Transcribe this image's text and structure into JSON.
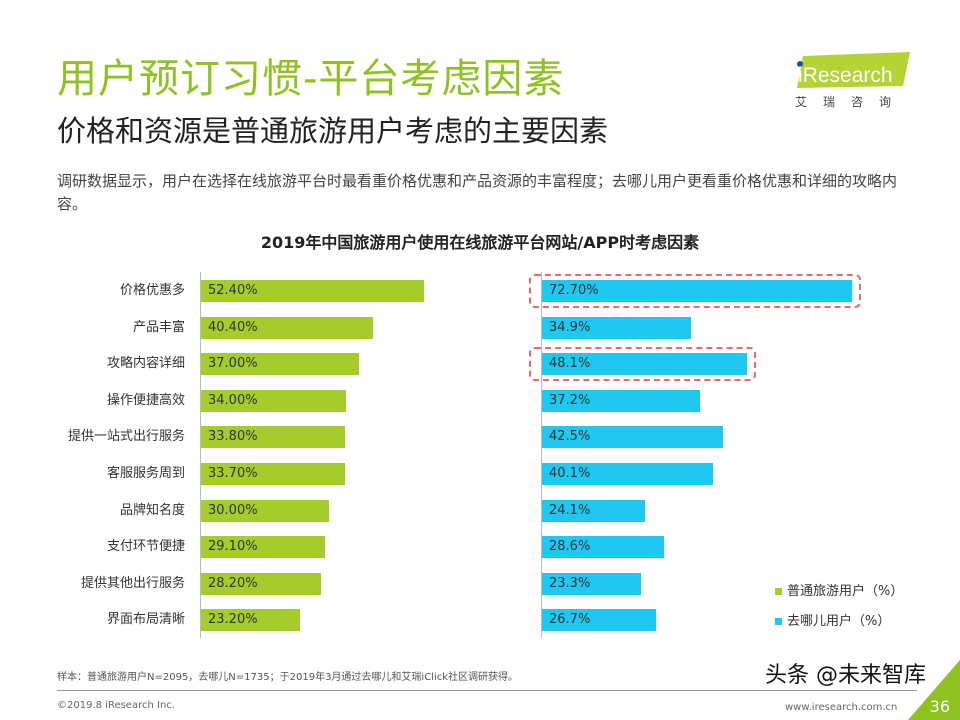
{
  "header": {
    "title": "用户预订习惯-平台考虑因素",
    "subtitle": "价格和资源是普通旅游用户考虑的主要因素",
    "description": "调研数据显示，用户在选择在线旅游平台时最看重价格优惠和产品资源的丰富程度；去哪儿用户更看重价格优惠和详细的攻略内容。"
  },
  "logo": {
    "text": "iResearch",
    "cn": "艾瑞咨询"
  },
  "colors": {
    "brand": "#8dc21f",
    "series1": "#a4cd2b",
    "series2": "#1ec8f0",
    "highlight": "#e86a6a"
  },
  "chart_data": {
    "type": "bar",
    "orientation": "horizontal",
    "title": "2019年中国旅游用户使用在线旅游平台网站/APP时考虑因素",
    "categories": [
      "价格优惠多",
      "产品丰富",
      "攻略内容详细",
      "操作便捷高效",
      "提供一站式出行服务",
      "客服服务周到",
      "品牌知名度",
      "支付环节便捷",
      "提供其他出行服务",
      "界面布局清晰"
    ],
    "series": [
      {
        "name": "普通旅游用户（%）",
        "values": [
          52.4,
          40.4,
          37.0,
          34.0,
          33.8,
          33.7,
          30.0,
          29.1,
          28.2,
          23.2
        ],
        "labels": [
          "52.40%",
          "40.40%",
          "37.00%",
          "34.00%",
          "33.80%",
          "33.70%",
          "30.00%",
          "29.10%",
          "28.20%",
          "23.20%"
        ]
      },
      {
        "name": "去哪儿用户（%）",
        "values": [
          72.7,
          34.9,
          48.1,
          37.2,
          42.5,
          40.1,
          24.1,
          28.6,
          23.3,
          26.7
        ],
        "labels": [
          "72.70%",
          "34.9%",
          "48.1%",
          "37.2%",
          "42.5%",
          "40.1%",
          "24.1%",
          "28.6%",
          "23.3%",
          "26.7%"
        ]
      }
    ],
    "highlighted": [
      "价格优惠多",
      "攻略内容详细"
    ],
    "legend": "bottom-right"
  },
  "footer": {
    "note": "样本：普通旅游用户N=2095，去哪儿N=1735；于2019年3月通过去哪儿和艾瑞iClick社区调研获得。",
    "copyright": "©2019.8 iResearch Inc.",
    "site": "www.iresearch.com.cn",
    "page": "36",
    "watermark": "头条 @未来智库"
  }
}
